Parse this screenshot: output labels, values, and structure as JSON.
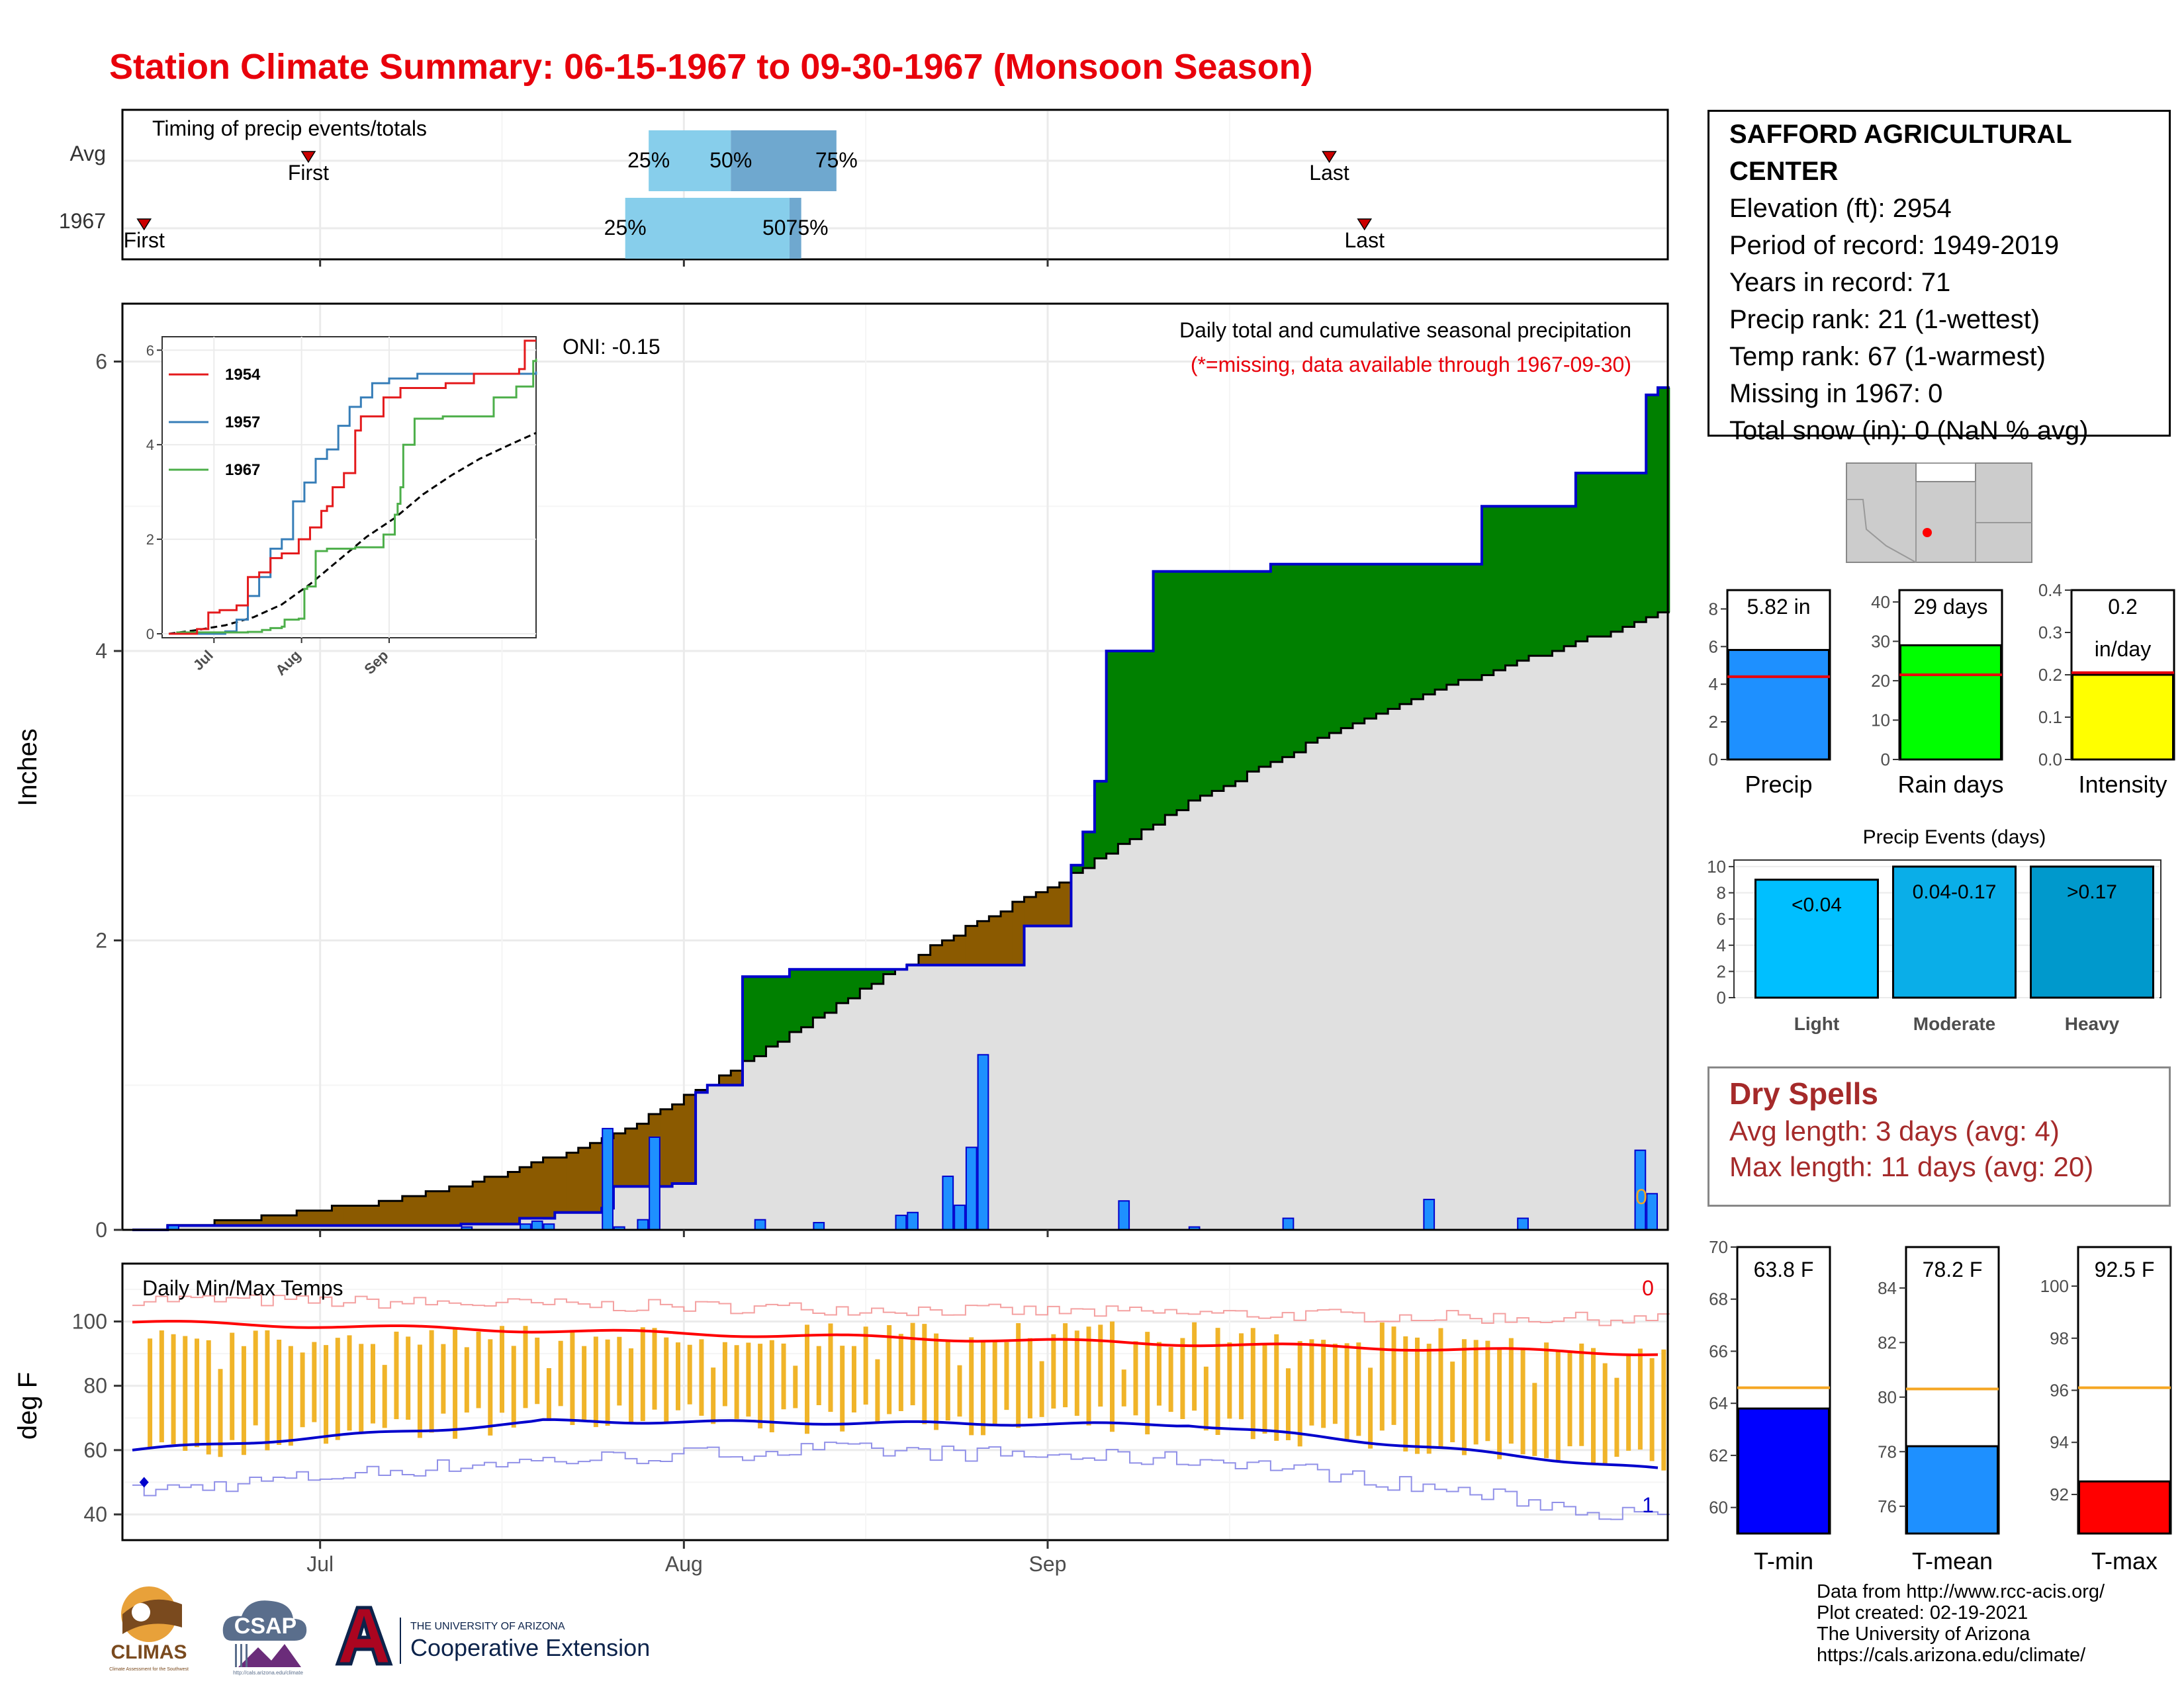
{
  "title": "Station Climate Summary: 06-15-1967 to 09-30-1967 (Monsoon Season)",
  "timing": {
    "label": "Timing of precip events/totals",
    "rows": [
      {
        "name": "Avg",
        "first": "2025-06-30",
        "p25": "2025-07-29",
        "p50": "2025-08-05",
        "p75": "2025-08-14",
        "last": "2025-09-25"
      },
      {
        "name": "1967",
        "first": "2025-06-16",
        "p25": "2025-07-27",
        "p50": "2025-08-10",
        "p75": "2025-08-11",
        "last": "2025-09-28"
      }
    ],
    "labels": {
      "first": "First",
      "last": "Last",
      "p25": "25%",
      "p50": "50%",
      "p75": "75%",
      "p50_p75_1967": "5075%"
    }
  },
  "precip_panel": {
    "ylabel": "Inches",
    "subtitle": "Daily total and cumulative seasonal precipitation",
    "missing_note": "(*=missing, data available through 1967-09-30)",
    "oni": "ONI: -0.15",
    "missing_count": "0",
    "yticks": [
      "0",
      "2",
      "4",
      "6"
    ]
  },
  "inset": {
    "legend": [
      "1954",
      "1957",
      "1967"
    ],
    "yticks": [
      "0",
      "2",
      "4",
      "6"
    ],
    "xticks": [
      "Jul",
      "Aug",
      "Sep"
    ]
  },
  "temp_panel": {
    "title": "Daily Min/Max Temps",
    "ylabel": "deg F",
    "yticks": [
      "40",
      "60",
      "80",
      "100"
    ],
    "missing_max": "0",
    "missing_min": "1"
  },
  "xticks": [
    "Jul",
    "Aug",
    "Sep"
  ],
  "station": {
    "name": "SAFFORD AGRICULTURAL CENTER",
    "elevation": "Elevation (ft): 2954",
    "period": "Period of record: 1949-2019",
    "years": "Years in record: 71",
    "precip_rank": "Precip rank: 21 (1-wettest)",
    "temp_rank": "Temp rank: 67 (1-warmest)",
    "missing": "Missing in 1967: 0",
    "snow": "Total snow (in): 0 (NaN % avg)"
  },
  "summary_bars": [
    {
      "name": "Precip",
      "value_label": "5.82 in",
      "value": 5.82,
      "avg": 4.4,
      "ymax": 9,
      "ticks": [
        "0",
        "2",
        "4",
        "6",
        "8"
      ],
      "color": "#1e90ff"
    },
    {
      "name": "Rain days",
      "value_label": "29 days",
      "value": 29,
      "avg": 21.5,
      "ymax": 43,
      "ticks": [
        "0",
        "10",
        "20",
        "30",
        "40"
      ],
      "color": "#00ff00"
    },
    {
      "name": "Intensity",
      "value_label": "0.2",
      "value_label2": "in/day",
      "value": 0.2,
      "avg": 0.205,
      "ymax": 0.4,
      "ticks": [
        "0.0",
        "0.1",
        "0.2",
        "0.3",
        "0.4"
      ],
      "color": "#ffff00"
    }
  ],
  "precip_events": {
    "title": "Precip Events (days)",
    "ticks": [
      "0",
      "2",
      "4",
      "6",
      "8",
      "10"
    ],
    "bars": [
      {
        "name": "Light",
        "label": "<0.04",
        "value": 9
      },
      {
        "name": "Moderate",
        "label": "0.04-0.17",
        "value": 10
      },
      {
        "name": "Heavy",
        "label": ">0.17",
        "value": 10
      }
    ]
  },
  "dry_spells": {
    "title": "Dry Spells",
    "avg": "Avg length: 3 days (avg: 4)",
    "max": "Max length: 11 days (avg: 20)"
  },
  "temp_bars": [
    {
      "name": "T-min",
      "value_label": "63.8 F",
      "value": 63.8,
      "avg": 64.6,
      "range": [
        59,
        70
      ],
      "ticks": [
        "60",
        "62",
        "64",
        "66",
        "68",
        "70"
      ],
      "color": "#0000ff"
    },
    {
      "name": "T-mean",
      "value_label": "78.2 F",
      "value": 78.2,
      "avg": 80.3,
      "range": [
        75,
        85.5
      ],
      "ticks": [
        "76",
        "78",
        "80",
        "82",
        "84"
      ],
      "color": "#1e90ff"
    },
    {
      "name": "T-max",
      "value_label": "92.5 F",
      "value": 92.5,
      "avg": 96.1,
      "range": [
        90.5,
        101.5
      ],
      "ticks": [
        "92",
        "94",
        "96",
        "98",
        "100"
      ],
      "color": "#ff0000"
    }
  ],
  "credits": [
    "Data from http://www.rcc-acis.org/",
    "Plot created: 02-19-2021",
    "The University of Arizona",
    "https://cals.arizona.edu/climate/"
  ],
  "logos": {
    "climas": "CLIMAS",
    "climas_sub": "Climate Assessment for the Southwest",
    "csap": "CSAP",
    "csap_url": "http://cals.arizona.edu/climate",
    "ua_small": "THE UNIVERSITY OF ARIZONA",
    "ua_big": "Cooperative Extension"
  },
  "chart_data": {
    "type": "area",
    "x_start": "1967-06-15",
    "x_end": "1967-09-30",
    "ylim": [
      0,
      6.4
    ],
    "series": [
      {
        "name": "1967",
        "cumulative": [
          [
            0,
            0
          ],
          [
            3,
            0.03
          ],
          [
            28,
            0.04
          ],
          [
            33,
            0.08
          ],
          [
            36,
            0.12
          ],
          [
            40,
            0.15
          ],
          [
            41,
            0.3
          ],
          [
            46,
            0.32
          ],
          [
            48,
            0.95
          ],
          [
            49,
            1.0
          ],
          [
            52,
            1.75
          ],
          [
            56,
            1.8
          ],
          [
            66,
            1.83
          ],
          [
            76,
            2.1
          ],
          [
            80,
            2.52
          ],
          [
            81,
            2.75
          ],
          [
            82,
            3.1
          ],
          [
            83,
            4.0
          ],
          [
            87,
            4.55
          ],
          [
            97,
            4.6
          ],
          [
            115,
            5.0
          ],
          [
            123,
            5.23
          ],
          [
            129,
            5.77
          ],
          [
            130,
            5.82
          ]
        ]
      }
    ],
    "daily_bars": [
      [
        3,
        0.03
      ],
      [
        28,
        0.02
      ],
      [
        33,
        0.04
      ],
      [
        34,
        0.06
      ],
      [
        35,
        0.04
      ],
      [
        40,
        0.7
      ],
      [
        41,
        0.02
      ],
      [
        43,
        0.07
      ],
      [
        44,
        0.64
      ],
      [
        53,
        0.07
      ],
      [
        58,
        0.05
      ],
      [
        65,
        0.1
      ],
      [
        66,
        0.12
      ],
      [
        69,
        0.37
      ],
      [
        70,
        0.17
      ],
      [
        71,
        0.57
      ],
      [
        72,
        1.21
      ],
      [
        84,
        0.2
      ],
      [
        90,
        0.02
      ],
      [
        98,
        0.08
      ],
      [
        110,
        0.21
      ],
      [
        118,
        0.08
      ],
      [
        128,
        0.55
      ],
      [
        129,
        0.25
      ]
    ],
    "avg_cumulative": [
      [
        0,
        0
      ],
      [
        10,
        0.08
      ],
      [
        20,
        0.18
      ],
      [
        30,
        0.35
      ],
      [
        40,
        0.62
      ],
      [
        50,
        1.05
      ],
      [
        60,
        1.55
      ],
      [
        70,
        2.05
      ],
      [
        80,
        2.45
      ],
      [
        90,
        2.95
      ],
      [
        100,
        3.35
      ],
      [
        110,
        3.7
      ],
      [
        120,
        3.98
      ],
      [
        130,
        4.25
      ]
    ]
  }
}
